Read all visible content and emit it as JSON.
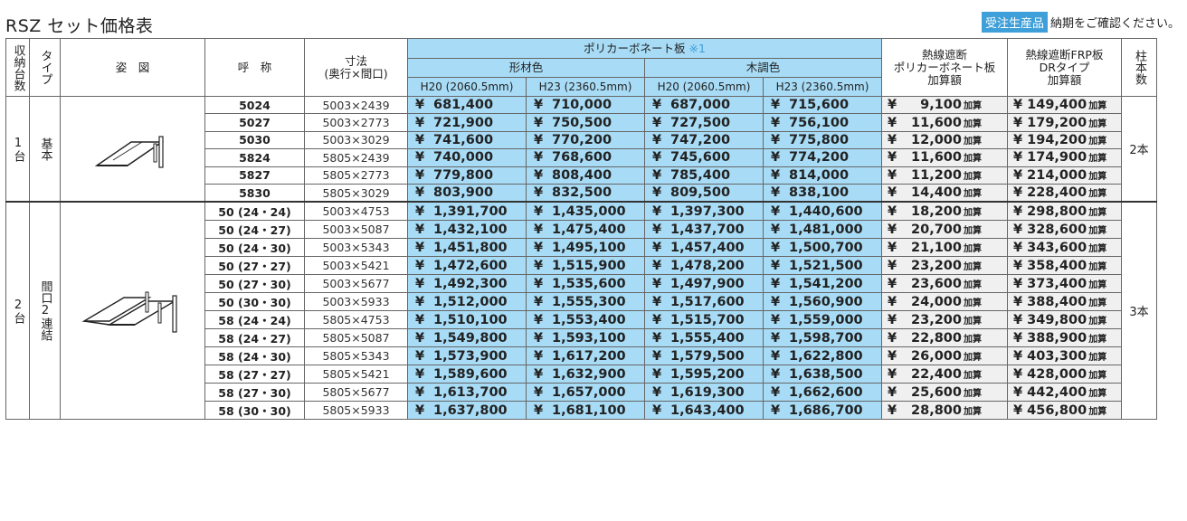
{
  "title": "RSZ セット価格表",
  "note": {
    "badge": "受注生産品",
    "text": "納期をご確認ください。"
  },
  "headers": {
    "count": "収納台数",
    "type": "タイプ",
    "figure": "姿　図",
    "name": "呼　称",
    "size": "寸法",
    "size_sub": "(奥行×間口)",
    "poly": "ポリカーボネート板",
    "poly_note": "※1",
    "shape": "形材色",
    "wood": "木調色",
    "h20": "H20 (2060.5mm)",
    "h23": "H23 (2360.5mm)",
    "heat1_l1": "熱線遮断",
    "heat1_l2": "ポリカーボネート板",
    "heat1_l3": "加算額",
    "heat2_l1": "熱線遮断FRP板",
    "heat2_l2": "DRタイプ",
    "heat2_l3": "加算額",
    "posts": "柱本数"
  },
  "yen": "¥",
  "unit": "加算",
  "groups": [
    {
      "count": "1台",
      "type": "基本",
      "posts": "2本",
      "rows": [
        {
          "name": "5024",
          "size": "5003×2439",
          "p": [
            "681,400",
            "710,000",
            "687,000",
            "715,600"
          ],
          "h1": "9,100",
          "h2": "149,400"
        },
        {
          "name": "5027",
          "size": "5003×2773",
          "p": [
            "721,900",
            "750,500",
            "727,500",
            "756,100"
          ],
          "h1": "11,600",
          "h2": "179,200"
        },
        {
          "name": "5030",
          "size": "5003×3029",
          "p": [
            "741,600",
            "770,200",
            "747,200",
            "775,800"
          ],
          "h1": "12,000",
          "h2": "194,200"
        },
        {
          "name": "5824",
          "size": "5805×2439",
          "p": [
            "740,000",
            "768,600",
            "745,600",
            "774,200"
          ],
          "h1": "11,600",
          "h2": "174,900"
        },
        {
          "name": "5827",
          "size": "5805×2773",
          "p": [
            "779,800",
            "808,400",
            "785,400",
            "814,000"
          ],
          "h1": "11,200",
          "h2": "214,000"
        },
        {
          "name": "5830",
          "size": "5805×3029",
          "p": [
            "803,900",
            "832,500",
            "809,500",
            "838,100"
          ],
          "h1": "14,400",
          "h2": "228,400"
        }
      ]
    },
    {
      "count": "2台",
      "type": "間口2連結",
      "posts": "3本",
      "rows": [
        {
          "name": "50 (24・24)",
          "size": "5003×4753",
          "p": [
            "1,391,700",
            "1,435,000",
            "1,397,300",
            "1,440,600"
          ],
          "h1": "18,200",
          "h2": "298,800"
        },
        {
          "name": "50 (24・27)",
          "size": "5003×5087",
          "p": [
            "1,432,100",
            "1,475,400",
            "1,437,700",
            "1,481,000"
          ],
          "h1": "20,700",
          "h2": "328,600"
        },
        {
          "name": "50 (24・30)",
          "size": "5003×5343",
          "p": [
            "1,451,800",
            "1,495,100",
            "1,457,400",
            "1,500,700"
          ],
          "h1": "21,100",
          "h2": "343,600"
        },
        {
          "name": "50 (27・27)",
          "size": "5003×5421",
          "p": [
            "1,472,600",
            "1,515,900",
            "1,478,200",
            "1,521,500"
          ],
          "h1": "23,200",
          "h2": "358,400"
        },
        {
          "name": "50 (27・30)",
          "size": "5003×5677",
          "p": [
            "1,492,300",
            "1,535,600",
            "1,497,900",
            "1,541,200"
          ],
          "h1": "23,600",
          "h2": "373,400"
        },
        {
          "name": "50 (30・30)",
          "size": "5003×5933",
          "p": [
            "1,512,000",
            "1,555,300",
            "1,517,600",
            "1,560,900"
          ],
          "h1": "24,000",
          "h2": "388,400"
        },
        {
          "name": "58 (24・24)",
          "size": "5805×4753",
          "p": [
            "1,510,100",
            "1,553,400",
            "1,515,700",
            "1,559,000"
          ],
          "h1": "23,200",
          "h2": "349,800"
        },
        {
          "name": "58 (24・27)",
          "size": "5805×5087",
          "p": [
            "1,549,800",
            "1,593,100",
            "1,555,400",
            "1,598,700"
          ],
          "h1": "22,800",
          "h2": "388,900"
        },
        {
          "name": "58 (24・30)",
          "size": "5805×5343",
          "p": [
            "1,573,900",
            "1,617,200",
            "1,579,500",
            "1,622,800"
          ],
          "h1": "26,000",
          "h2": "403,300"
        },
        {
          "name": "58 (27・27)",
          "size": "5805×5421",
          "p": [
            "1,589,600",
            "1,632,900",
            "1,595,200",
            "1,638,500"
          ],
          "h1": "22,400",
          "h2": "428,000"
        },
        {
          "name": "58 (27・30)",
          "size": "5805×5677",
          "p": [
            "1,613,700",
            "1,657,000",
            "1,619,300",
            "1,662,600"
          ],
          "h1": "25,600",
          "h2": "442,400"
        },
        {
          "name": "58 (30・30)",
          "size": "5805×5933",
          "p": [
            "1,637,800",
            "1,681,100",
            "1,643,400",
            "1,686,700"
          ],
          "h1": "28,800",
          "h2": "456,800"
        }
      ]
    }
  ]
}
